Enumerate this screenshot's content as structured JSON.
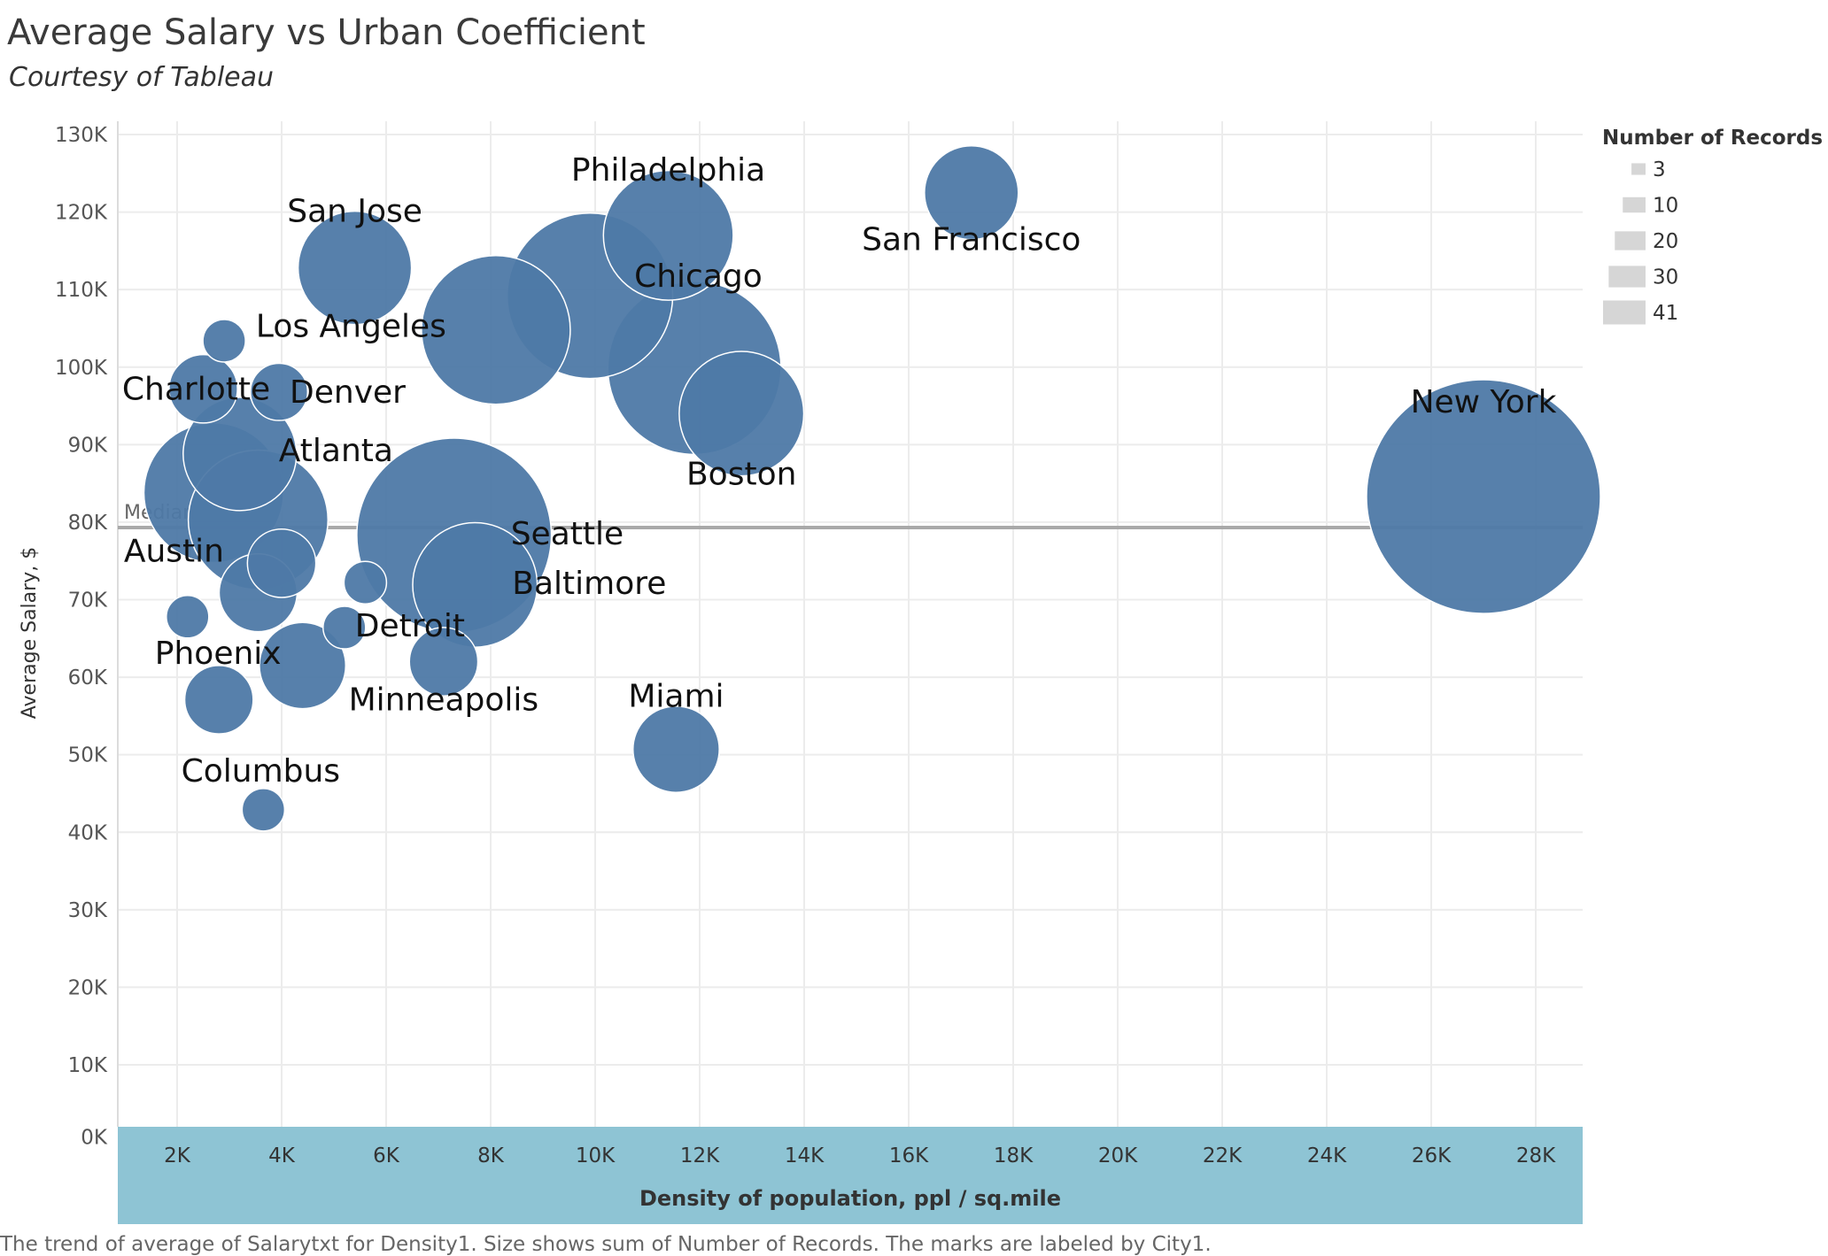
{
  "title": "Average Salary vs Urban Coefficient",
  "subtitle": "Courtesy of Tableau",
  "footer": "The trend of average of Salarytxt for Density1.  Size shows sum of Number of Records.  The marks are labeled by City1.",
  "colors": {
    "bubble": "#4e79a7",
    "reference_line": "#a9a9a9",
    "x_axis_band": "#8ec4d4",
    "grid": "#ececec",
    "legend_swatch": "#d6d6d6"
  },
  "chart_data": {
    "type": "scatter",
    "xlabel": "Density of population, ppl / sq.mile",
    "ylabel": "Average Salary, $",
    "xlim": [
      900,
      29000
    ],
    "ylim": [
      0,
      131000
    ],
    "x_ticks": [
      2000,
      4000,
      6000,
      8000,
      10000,
      12000,
      14000,
      16000,
      18000,
      20000,
      22000,
      24000,
      26000,
      28000
    ],
    "x_tick_labels": [
      "2K",
      "4K",
      "6K",
      "8K",
      "10K",
      "12K",
      "14K",
      "16K",
      "18K",
      "20K",
      "22K",
      "24K",
      "26K",
      "28K"
    ],
    "y_ticks": [
      0,
      10000,
      20000,
      30000,
      40000,
      50000,
      60000,
      70000,
      80000,
      90000,
      100000,
      110000,
      120000,
      130000
    ],
    "y_tick_labels": [
      "0K",
      "10K",
      "20K",
      "30K",
      "40K",
      "50K",
      "60K",
      "70K",
      "80K",
      "90K",
      "100K",
      "110K",
      "120K",
      "130K"
    ],
    "grid": true,
    "reference_line": {
      "label": "Median",
      "value": 79300
    },
    "size_legend": {
      "title": "Number of Records",
      "values": [
        3,
        10,
        20,
        30,
        41
      ],
      "placement": "top-right"
    },
    "points": [
      {
        "city": "Philadelphia",
        "x": 11400,
        "y": 117000,
        "records": 12
      },
      {
        "city": "San Francisco",
        "x": 17200,
        "y": 122500,
        "records": 6
      },
      {
        "city": "San Jose",
        "x": 5400,
        "y": 112800,
        "records": 9
      },
      {
        "city": "Chicago",
        "x": 9900,
        "y": 109200,
        "records": 20
      },
      {
        "city": "Los Angeles",
        "x": 8100,
        "y": 104800,
        "records": 16
      },
      {
        "city": "",
        "x": 2900,
        "y": 103400,
        "records": 1
      },
      {
        "city": "",
        "x": 11900,
        "y": 99900,
        "records": 22
      },
      {
        "city": "Charlotte",
        "x": 2500,
        "y": 97200,
        "records": 3
      },
      {
        "city": "Denver",
        "x": 3950,
        "y": 96800,
        "records": 2
      },
      {
        "city": "Boston",
        "x": 12800,
        "y": 94000,
        "records": 11
      },
      {
        "city": "Atlanta",
        "x": 3200,
        "y": 88800,
        "records": 9
      },
      {
        "city": "",
        "x": 2700,
        "y": 83800,
        "records": 14
      },
      {
        "city": "",
        "x": 3550,
        "y": 80300,
        "records": 14
      },
      {
        "city": "Seattle",
        "x": 7300,
        "y": 78300,
        "records": 28
      },
      {
        "city": "New York",
        "x": 27000,
        "y": 83300,
        "records": 41
      },
      {
        "city": "Austin",
        "x": 4000,
        "y": 74700,
        "records": 3
      },
      {
        "city": "",
        "x": 5600,
        "y": 72200,
        "records": 1
      },
      {
        "city": "Baltimore",
        "x": 7700,
        "y": 71900,
        "records": 11
      },
      {
        "city": "",
        "x": 3550,
        "y": 70900,
        "records": 4
      },
      {
        "city": "",
        "x": 2200,
        "y": 67800,
        "records": 1
      },
      {
        "city": "Detroit",
        "x": 5200,
        "y": 66400,
        "records": 1
      },
      {
        "city": "Minneapolis",
        "x": 7100,
        "y": 62000,
        "records": 3
      },
      {
        "city": "Phoenix",
        "x": 4400,
        "y": 61500,
        "records": 5
      },
      {
        "city": "",
        "x": 2800,
        "y": 57100,
        "records": 3
      },
      {
        "city": "Miami",
        "x": 11550,
        "y": 50700,
        "records": 5
      },
      {
        "city": "Columbus",
        "x": 3650,
        "y": 42900,
        "records": 1
      }
    ]
  }
}
